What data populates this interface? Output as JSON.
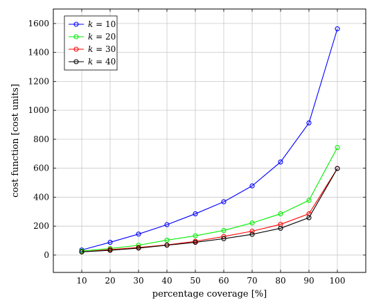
{
  "chart_data": {
    "type": "line",
    "xlabel": "percentage coverage [%]",
    "ylabel": "cost function [cost units]",
    "xlim": [
      0,
      110
    ],
    "ylim": [
      -120,
      1700
    ],
    "x": [
      10,
      20,
      30,
      40,
      50,
      60,
      70,
      80,
      90,
      100
    ],
    "x_ticks": [
      10,
      20,
      30,
      40,
      50,
      60,
      70,
      80,
      90,
      100
    ],
    "y_ticks": [
      0,
      200,
      400,
      600,
      800,
      1000,
      1200,
      1400,
      1600
    ],
    "grid": true,
    "legend_position": "top-left",
    "series": [
      {
        "name": "k = 10",
        "label_var": "k",
        "label_rest": " = 10",
        "color": "#0000ff",
        "values": [
          35,
          88,
          145,
          210,
          285,
          368,
          478,
          643,
          913,
          1563
        ]
      },
      {
        "name": "k = 20",
        "label_var": "k",
        "label_rest": " = 20",
        "color": "#00ee00",
        "values": [
          28,
          45,
          68,
          103,
          133,
          170,
          222,
          285,
          378,
          743
        ]
      },
      {
        "name": "k = 30",
        "label_var": "k",
        "label_rest": " = 30",
        "color": "#ff0000",
        "values": [
          22,
          38,
          52,
          70,
          95,
          128,
          165,
          212,
          285,
          598
        ]
      },
      {
        "name": "k = 40",
        "label_var": "k",
        "label_rest": " = 40",
        "color": "#000000",
        "values": [
          22,
          33,
          48,
          68,
          88,
          113,
          143,
          185,
          258,
          598
        ]
      }
    ]
  }
}
